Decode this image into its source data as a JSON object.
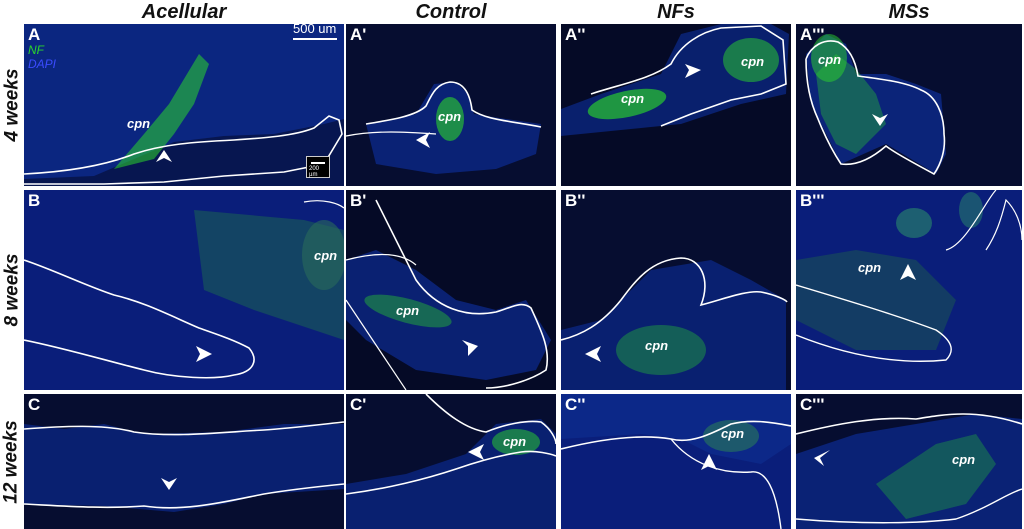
{
  "columns": [
    "Acellular",
    "Control",
    "NFs",
    "MSs"
  ],
  "rows": [
    "4 weeks",
    "8 weeks",
    "12 weeks"
  ],
  "panels": [
    [
      {
        "label": "A",
        "cpn": "cpn"
      },
      {
        "label": "A'",
        "cpn": "cpn"
      },
      {
        "label": "A''",
        "cpn": "cpn",
        "cpn2": "cpn"
      },
      {
        "label": "A'''",
        "cpn": "cpn",
        "cpn2": "cpn"
      }
    ],
    [
      {
        "label": "B",
        "cpn": "cpn"
      },
      {
        "label": "B'",
        "cpn": "cpn"
      },
      {
        "label": "B''",
        "cpn": "cpn"
      },
      {
        "label": "B'''",
        "cpn": "cpn"
      }
    ],
    [
      {
        "label": "C"
      },
      {
        "label": "C'",
        "cpn": "cpn"
      },
      {
        "label": "C''",
        "cpn": "cpn"
      },
      {
        "label": "C'''",
        "cpn": "cpn"
      }
    ]
  ],
  "stain": {
    "nf": "NF",
    "dapi": "DAPI"
  },
  "scale": {
    "main": "500 um",
    "inset": "200 µm"
  },
  "colors": {
    "tissue": "#0a1e7a",
    "background": "#050a26",
    "nf_green": "#2bd52b",
    "outline": "#ffffff"
  }
}
